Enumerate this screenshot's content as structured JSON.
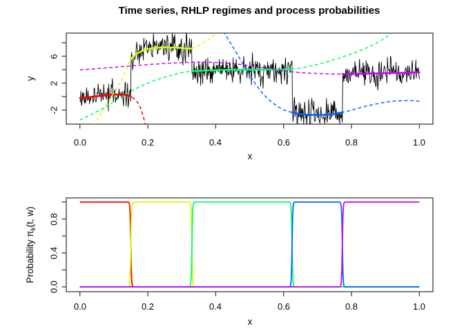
{
  "title": "Time series, RHLP regimes and process probabilities",
  "chart_data": [
    {
      "id": "top-panel",
      "type": "line",
      "title": "Time series, RHLP regimes and process probabilities",
      "xlabel": "x",
      "ylabel": "y",
      "xlim": [
        0,
        1
      ],
      "ylim": [
        -4.1,
        9.4
      ],
      "grid": false,
      "legend": "none",
      "xticks": [
        0,
        0.2,
        0.4,
        0.6,
        0.8,
        1
      ],
      "xtick_labels": [
        "0.0",
        "0.2",
        "0.4",
        "0.6",
        "0.8",
        "1.0"
      ],
      "yticks": [
        -2,
        0,
        2,
        4,
        6,
        8
      ],
      "ytick_labels": [
        "-2",
        "2",
        "6"
      ],
      "ytick_label_values": [
        -2,
        2,
        6
      ],
      "series_color": "#000000",
      "noise_sd": 1.0,
      "n_points": 670,
      "regimes": [
        {
          "name": "regime-1",
          "color": "#FF0000",
          "x_start": 0.0,
          "x_end": 0.15,
          "curve": [
            [
              0,
              -0.25
            ],
            [
              0.06,
              0.1
            ],
            [
              0.1,
              0.3
            ],
            [
              0.13,
              0.25
            ],
            [
              0.15,
              0.0
            ],
            [
              0.175,
              -1.3
            ],
            [
              0.194,
              -4.3
            ]
          ]
        },
        {
          "name": "regime-2",
          "color": "#CCFF00",
          "x_start": 0.15,
          "x_end": 0.33,
          "curve": [
            [
              0.04,
              -4.3
            ],
            [
              0.09,
              -0.3
            ],
            [
              0.13,
              3.2
            ],
            [
              0.15,
              5.6
            ],
            [
              0.19,
              6.9
            ],
            [
              0.24,
              7.3
            ],
            [
              0.29,
              7.25
            ],
            [
              0.33,
              7.15
            ],
            [
              0.36,
              7.9
            ],
            [
              0.39,
              8.9
            ],
            [
              0.404,
              9.7
            ]
          ]
        },
        {
          "name": "regime-3",
          "color": "#00FF66",
          "x_start": 0.33,
          "x_end": 0.625,
          "curve": [
            [
              0,
              -3.5
            ],
            [
              0.07,
              -1.7
            ],
            [
              0.14,
              0.5
            ],
            [
              0.21,
              2.2
            ],
            [
              0.28,
              3.3
            ],
            [
              0.33,
              3.75
            ],
            [
              0.42,
              3.95
            ],
            [
              0.52,
              4.0
            ],
            [
              0.625,
              4.1
            ],
            [
              0.7,
              4.8
            ],
            [
              0.78,
              6.0
            ],
            [
              0.86,
              7.6
            ],
            [
              0.928,
              9.7
            ]
          ]
        },
        {
          "name": "regime-4",
          "color": "#0066FF",
          "x_start": 0.625,
          "x_end": 0.773,
          "curve": [
            [
              0.423,
              9.7
            ],
            [
              0.46,
              6.6
            ],
            [
              0.5,
              3.2
            ],
            [
              0.545,
              0.1
            ],
            [
              0.59,
              -1.7
            ],
            [
              0.625,
              -2.35
            ],
            [
              0.67,
              -2.7
            ],
            [
              0.72,
              -2.7
            ],
            [
              0.773,
              -2.35
            ],
            [
              0.85,
              -1.35
            ],
            [
              0.92,
              -0.7
            ],
            [
              0.97,
              -0.6
            ],
            [
              1,
              -0.7
            ]
          ]
        },
        {
          "name": "regime-5",
          "color": "#CC00FF",
          "x_start": 0.773,
          "x_end": 1.0,
          "curve": [
            [
              0,
              3.95
            ],
            [
              0.1,
              4.35
            ],
            [
              0.2,
              4.75
            ],
            [
              0.3,
              5.05
            ],
            [
              0.38,
              5.1
            ],
            [
              0.46,
              4.85
            ],
            [
              0.54,
              4.3
            ],
            [
              0.64,
              3.6
            ],
            [
              0.72,
              3.4
            ],
            [
              0.773,
              3.35
            ],
            [
              0.88,
              3.45
            ],
            [
              1,
              3.6
            ]
          ]
        }
      ]
    },
    {
      "id": "bottom-panel",
      "type": "line",
      "xlabel": "x",
      "ylabel_prefix": "Probability ",
      "ylabel_symbol": "π",
      "ylabel_sub": "k",
      "ylabel_suffix": "(t, w)",
      "xlim": [
        0,
        1
      ],
      "ylim": [
        0,
        1
      ],
      "grid": false,
      "legend": "none",
      "xticks": [
        0,
        0.2,
        0.4,
        0.6,
        0.8,
        1
      ],
      "xtick_labels": [
        "0.0",
        "0.2",
        "0.4",
        "0.6",
        "0.8",
        "1.0"
      ],
      "yticks": [
        0,
        0.2,
        0.4,
        0.6,
        0.8,
        1
      ],
      "ytick_labels": [
        "0.0",
        "0.4",
        "0.8"
      ],
      "ytick_label_values": [
        0,
        0.4,
        0.8
      ],
      "transitions": [
        0.15,
        0.33,
        0.625,
        0.773
      ],
      "sharpness": 900,
      "colors": [
        "#FF0000",
        "#CCFF00",
        "#00FF66",
        "#0066FF",
        "#CC00FF"
      ]
    }
  ]
}
